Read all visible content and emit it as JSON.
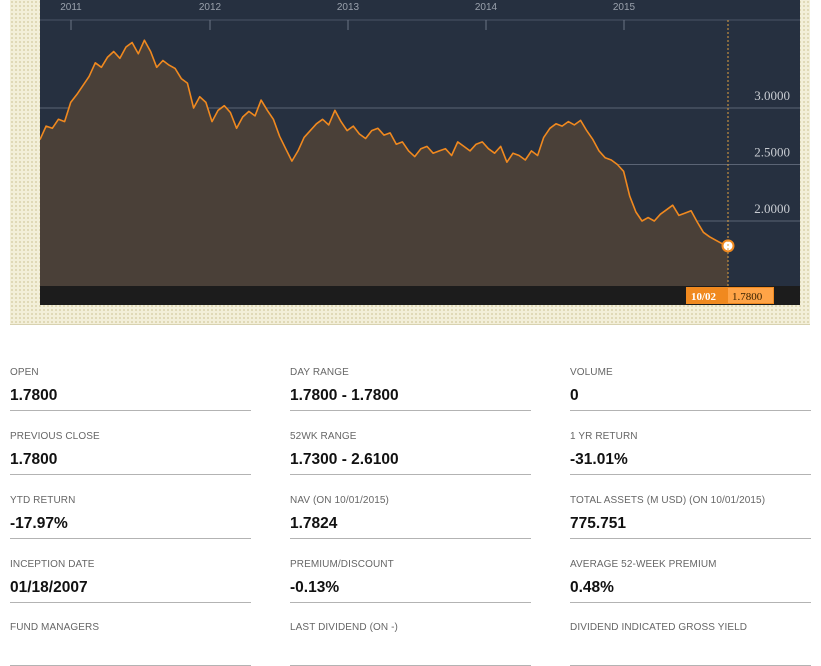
{
  "chart_data": {
    "type": "area",
    "x_ticks": [
      "2011",
      "2012",
      "2013",
      "2014",
      "2015"
    ],
    "y_ticks": [
      "3.0000",
      "2.5000",
      "2.0000"
    ],
    "ylim": [
      1.4,
      3.9
    ],
    "grid": true,
    "series": [
      {
        "values": [
          2.72,
          2.84,
          2.82,
          2.9,
          2.88,
          3.05,
          3.12,
          3.2,
          3.28,
          3.4,
          3.36,
          3.45,
          3.5,
          3.44,
          3.54,
          3.58,
          3.48,
          3.6,
          3.5,
          3.36,
          3.42,
          3.38,
          3.35,
          3.26,
          3.22,
          3.0,
          3.1,
          3.05,
          2.88,
          2.98,
          3.02,
          2.96,
          2.82,
          2.92,
          2.97,
          2.93,
          3.07,
          2.98,
          2.9,
          2.75,
          2.64,
          2.53,
          2.62,
          2.74,
          2.8,
          2.86,
          2.9,
          2.85,
          2.98,
          2.88,
          2.8,
          2.84,
          2.77,
          2.73,
          2.8,
          2.82,
          2.76,
          2.78,
          2.68,
          2.7,
          2.62,
          2.57,
          2.64,
          2.66,
          2.6,
          2.62,
          2.64,
          2.58,
          2.7,
          2.66,
          2.62,
          2.68,
          2.7,
          2.64,
          2.6,
          2.66,
          2.52,
          2.6,
          2.58,
          2.54,
          2.62,
          2.58,
          2.74,
          2.82,
          2.86,
          2.84,
          2.88,
          2.85,
          2.89,
          2.8,
          2.72,
          2.62,
          2.56,
          2.54,
          2.5,
          2.44,
          2.22,
          2.08,
          2.0,
          2.03,
          2.0,
          2.06,
          2.1,
          2.14,
          2.05,
          2.07,
          2.09,
          1.99,
          1.9,
          1.86,
          1.83,
          1.8,
          1.78
        ]
      }
    ],
    "last_point": {
      "date": "10/02",
      "value": "1.7800"
    }
  },
  "stats": [
    {
      "label": "OPEN",
      "value": "1.7800"
    },
    {
      "label": "DAY RANGE",
      "value": "1.7800 - 1.7800"
    },
    {
      "label": "VOLUME",
      "value": "0"
    },
    {
      "label": "PREVIOUS CLOSE",
      "value": "1.7800"
    },
    {
      "label": "52WK RANGE",
      "value": "1.7300 - 2.6100"
    },
    {
      "label": "1 YR RETURN",
      "value": "-31.01%"
    },
    {
      "label": "YTD RETURN",
      "value": "-17.97%"
    },
    {
      "label": "NAV (ON 10/01/2015)",
      "value": "1.7824"
    },
    {
      "label": "TOTAL ASSETS (M USD) (ON 10/01/2015)",
      "value": "775.751"
    },
    {
      "label": "INCEPTION DATE",
      "value": "01/18/2007"
    },
    {
      "label": "PREMIUM/DISCOUNT",
      "value": "-0.13%"
    },
    {
      "label": "AVERAGE 52-WEEK PREMIUM",
      "value": "0.48%"
    },
    {
      "label": "FUND MANAGERS",
      "value": ""
    },
    {
      "label": "LAST DIVIDEND (ON -)",
      "value": ""
    },
    {
      "label": "DIVIDEND INDICATED GROSS YIELD",
      "value": ""
    }
  ],
  "colors": {
    "line": "#f0891f",
    "plot_bg": "#263040",
    "fill": "#4a4038",
    "badge": "#f0891f"
  }
}
